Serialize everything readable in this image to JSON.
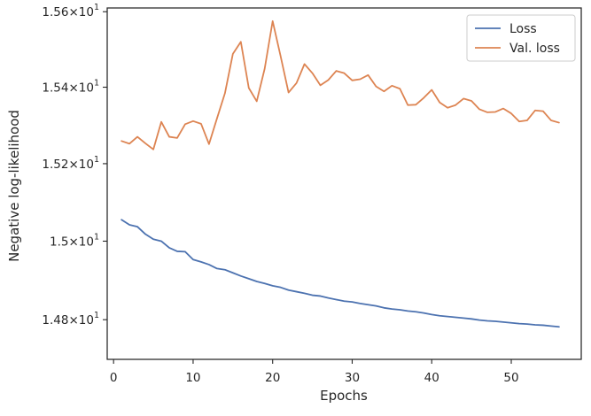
{
  "chart_data": {
    "type": "line",
    "title": "",
    "xlabel": "Epochs",
    "ylabel": "Negative log-likelihood",
    "y_scale": "log",
    "xlim": [
      -0.8,
      58.8
    ],
    "ylim": [
      14.7,
      15.61
    ],
    "x_ticks": [
      0,
      10,
      20,
      30,
      40,
      50
    ],
    "x_tick_labels": [
      "0",
      "10",
      "20",
      "30",
      "40",
      "50"
    ],
    "y_ticks": [
      14.8,
      15.0,
      15.2,
      15.4,
      15.6
    ],
    "y_tick_labels": [
      {
        "mantissa": "1.48",
        "times": "×",
        "base": "10",
        "exp": "1"
      },
      {
        "mantissa": "1.5",
        "times": "×",
        "base": "10",
        "exp": "1"
      },
      {
        "mantissa": "1.52",
        "times": "×",
        "base": "10",
        "exp": "1"
      },
      {
        "mantissa": "1.54",
        "times": "×",
        "base": "10",
        "exp": "1"
      },
      {
        "mantissa": "1.56",
        "times": "×",
        "base": "10",
        "exp": "1"
      }
    ],
    "grid": false,
    "legend_position": "top-right",
    "x": [
      1,
      2,
      3,
      4,
      5,
      6,
      7,
      8,
      9,
      10,
      11,
      12,
      13,
      14,
      15,
      16,
      17,
      18,
      19,
      20,
      21,
      22,
      23,
      24,
      25,
      26,
      27,
      28,
      29,
      30,
      31,
      32,
      33,
      34,
      35,
      36,
      37,
      38,
      39,
      40,
      41,
      42,
      43,
      44,
      45,
      46,
      47,
      48,
      49,
      50,
      51,
      52,
      53,
      54,
      55,
      56
    ],
    "series": [
      {
        "name": "Loss",
        "color": "#4c72b0",
        "values": [
          15.055,
          15.042,
          15.037,
          15.018,
          15.005,
          15.0,
          14.983,
          14.974,
          14.973,
          14.953,
          14.947,
          14.94,
          14.93,
          14.927,
          14.919,
          14.911,
          14.904,
          14.897,
          14.892,
          14.886,
          14.882,
          14.875,
          14.871,
          14.867,
          14.862,
          14.86,
          14.855,
          14.851,
          14.847,
          14.845,
          14.841,
          14.838,
          14.835,
          14.83,
          14.827,
          14.825,
          14.822,
          14.82,
          14.817,
          14.813,
          14.81,
          14.808,
          14.806,
          14.804,
          14.802,
          14.799,
          14.797,
          14.796,
          14.794,
          14.792,
          14.79,
          14.789,
          14.787,
          14.786,
          14.784,
          14.782
        ]
      },
      {
        "name": "Val. loss",
        "color": "#dd8452",
        "values": [
          15.259,
          15.252,
          15.27,
          15.253,
          15.237,
          15.309,
          15.27,
          15.267,
          15.303,
          15.311,
          15.304,
          15.251,
          15.318,
          15.384,
          15.488,
          15.52,
          15.398,
          15.363,
          15.449,
          15.575,
          15.482,
          15.386,
          15.411,
          15.461,
          15.437,
          15.405,
          15.419,
          15.443,
          15.437,
          15.418,
          15.421,
          15.432,
          15.402,
          15.389,
          15.404,
          15.396,
          15.353,
          15.354,
          15.372,
          15.393,
          15.36,
          15.346,
          15.353,
          15.37,
          15.364,
          15.342,
          15.334,
          15.335,
          15.344,
          15.331,
          15.31,
          15.313,
          15.339,
          15.337,
          15.313,
          15.307
        ]
      }
    ]
  }
}
